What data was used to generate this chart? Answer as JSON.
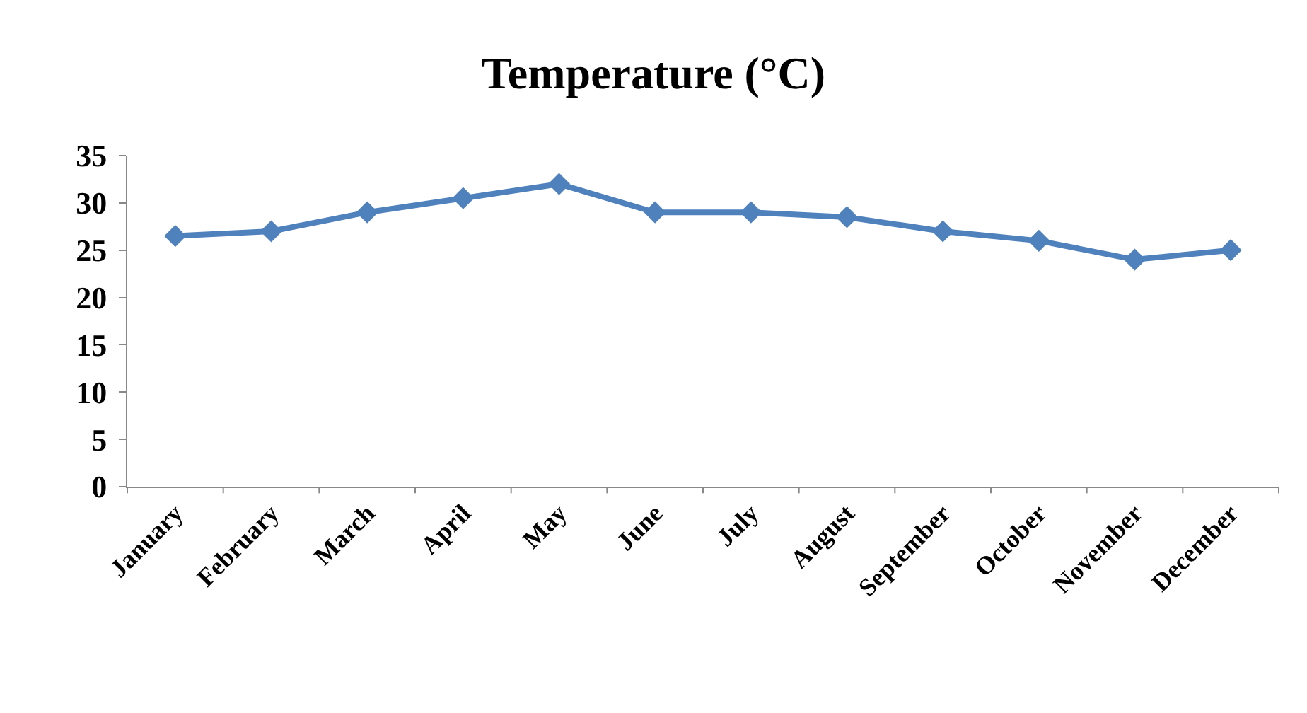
{
  "chart_data": {
    "type": "line",
    "title": "Temperature (°C)",
    "categories": [
      "January",
      "February",
      "March",
      "April",
      "May",
      "June",
      "July",
      "August",
      "September",
      "October",
      "November",
      "December"
    ],
    "series": [
      {
        "color": "#4f81bd",
        "values": [
          26.5,
          27,
          29,
          30.5,
          32,
          29,
          29,
          28.5,
          27,
          26,
          24,
          25
        ]
      }
    ],
    "ylim": [
      0,
      35
    ],
    "yticks": [
      0,
      5,
      10,
      15,
      20,
      25,
      30,
      35
    ],
    "legend": false,
    "marker": "diamond",
    "line_style": "solid"
  }
}
